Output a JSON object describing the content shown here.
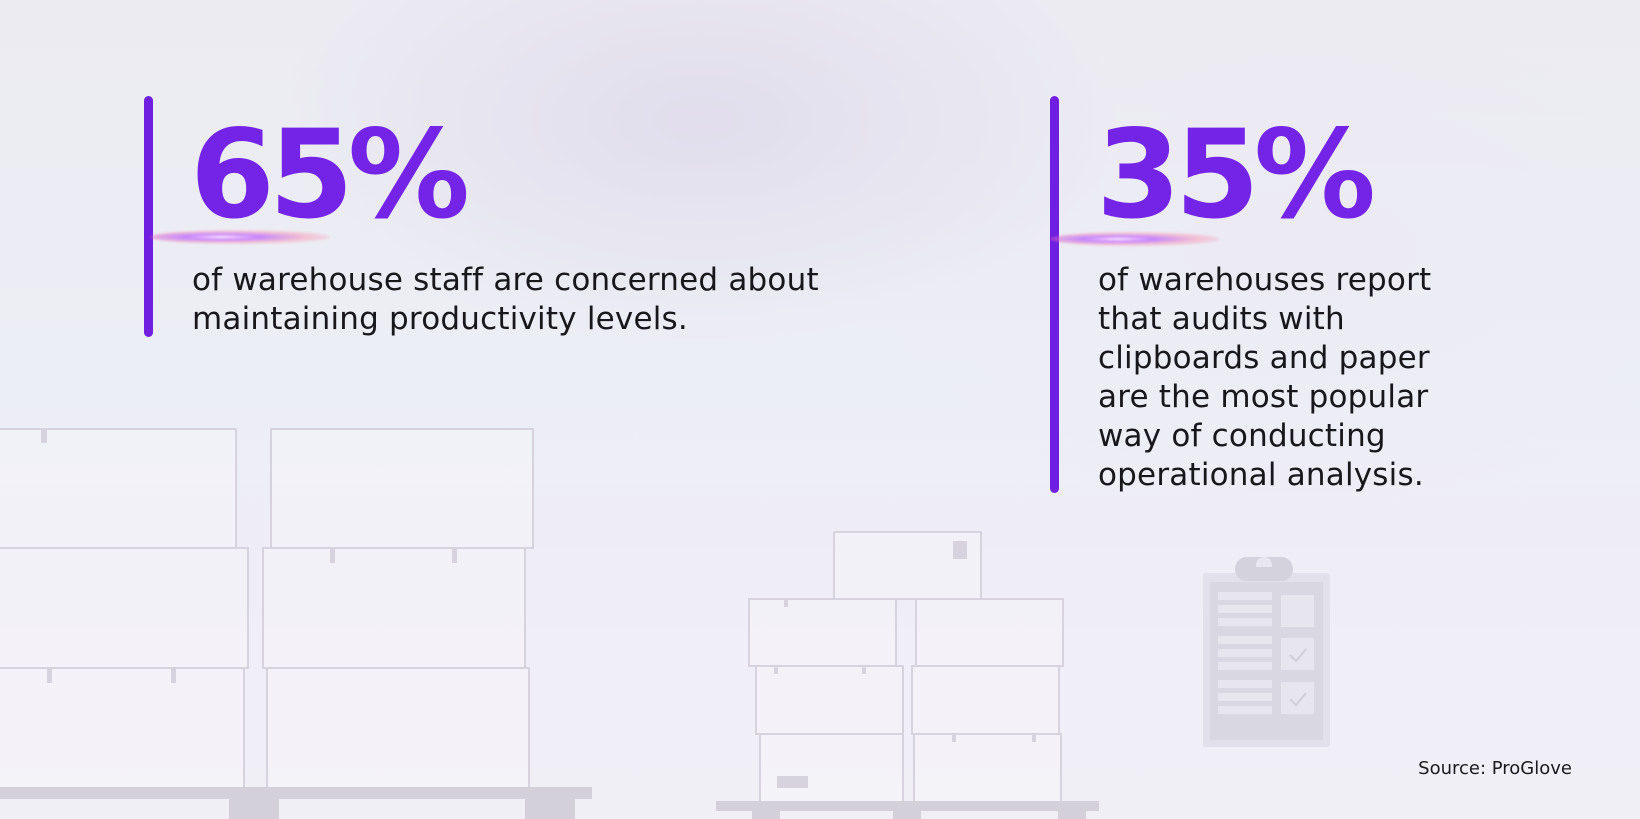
{
  "stats": [
    {
      "value": "65%",
      "description": "of warehouse staff are concerned about maintaining productivity levels."
    },
    {
      "value": "35%",
      "description": "of warehouses report that audits with clipboards and paper are the most popular way of conducting operational analysis."
    }
  ],
  "source": "Source: ProGlove",
  "colors": {
    "accent": "#7424e6",
    "bar": "#6f1fe0",
    "text": "#18181c",
    "illustration_stroke": "#d8d5e0"
  }
}
